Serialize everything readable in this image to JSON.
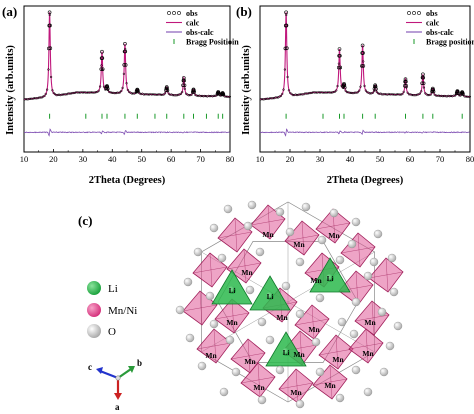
{
  "figure": {
    "panel_labels": {
      "a": "(a)",
      "b": "(b)",
      "c": "(c)"
    }
  },
  "chart_data": [
    {
      "type": "scatter",
      "panel": "(a)",
      "ylabel": "Intensity (arb.units)",
      "xlabel": "2Theta (Degrees)",
      "xlim": [
        10,
        80
      ],
      "xticks": [
        "10",
        "20",
        "30",
        "40",
        "50",
        "60",
        "70",
        "80"
      ],
      "legend": [
        "obs",
        "calc",
        "obs-calc",
        "Bragg Positioin"
      ],
      "legend_placement": "top-right",
      "series": [
        {
          "name": "obs",
          "style": "open-circles",
          "color": "#000000"
        },
        {
          "name": "calc",
          "style": "line",
          "color": "#c0187c"
        },
        {
          "name": "obs-calc",
          "style": "line",
          "color": "#7f4fb3"
        },
        {
          "name": "Bragg Positioin",
          "style": "ticks",
          "color": "#1a9a2a"
        }
      ],
      "peaks": [
        {
          "x": 18.7,
          "height": 0.97
        },
        {
          "x": 36.5,
          "height": 0.47
        },
        {
          "x": 38.2,
          "height": 0.07
        },
        {
          "x": 44.3,
          "height": 0.57
        },
        {
          "x": 48.5,
          "height": 0.05
        },
        {
          "x": 58.5,
          "height": 0.09
        },
        {
          "x": 64.3,
          "height": 0.2
        },
        {
          "x": 67.6,
          "height": 0.07
        },
        {
          "x": 76.0,
          "height": 0.05
        },
        {
          "x": 77.5,
          "height": 0.04
        }
      ],
      "bragg_positions": [
        18.7,
        31,
        36.5,
        38.2,
        44.3,
        48.5,
        54.5,
        58.5,
        64.3,
        67.6,
        72,
        76,
        77.5
      ]
    },
    {
      "type": "scatter",
      "panel": "(b)",
      "ylabel": "Intensity (arb.units)",
      "xlabel": "2Theta (Degrees)",
      "xlim": [
        10,
        80
      ],
      "xticks": [
        "10",
        "20",
        "30",
        "40",
        "50",
        "60",
        "70",
        "80"
      ],
      "legend": [
        "obs",
        "calc",
        "obs-calc",
        "Bragg position"
      ],
      "legend_placement": "top-right",
      "series": [
        {
          "name": "obs",
          "style": "open-circles",
          "color": "#000000"
        },
        {
          "name": "calc",
          "style": "line",
          "color": "#c0187c"
        },
        {
          "name": "obs-calc",
          "style": "line",
          "color": "#7f4fb3"
        },
        {
          "name": "Bragg position",
          "style": "ticks",
          "color": "#1a9a2a"
        }
      ],
      "peaks": [
        {
          "x": 18.7,
          "height": 0.97
        },
        {
          "x": 36.5,
          "height": 0.5
        },
        {
          "x": 38.0,
          "height": 0.09
        },
        {
          "x": 44.2,
          "height": 0.55
        },
        {
          "x": 48.4,
          "height": 0.1
        },
        {
          "x": 58.5,
          "height": 0.18
        },
        {
          "x": 64.3,
          "height": 0.24
        },
        {
          "x": 67.6,
          "height": 0.08
        },
        {
          "x": 75.8,
          "height": 0.06
        },
        {
          "x": 77.4,
          "height": 0.05
        }
      ],
      "bragg_positions": [
        18.7,
        31,
        36.5,
        38,
        44.2,
        48.4,
        58.5,
        64.3,
        67.6,
        77.4
      ]
    }
  ],
  "structure": {
    "legend": [
      {
        "label": "Li",
        "color": "#29b84a"
      },
      {
        "label": "Mn/Ni",
        "color": "#e0408a"
      },
      {
        "label": "O",
        "color": "#d9d9d9"
      }
    ],
    "atom_label_mn": "Mn",
    "atom_label_li": "Li",
    "axes": {
      "c": "c",
      "b": "b",
      "a": "a"
    }
  }
}
